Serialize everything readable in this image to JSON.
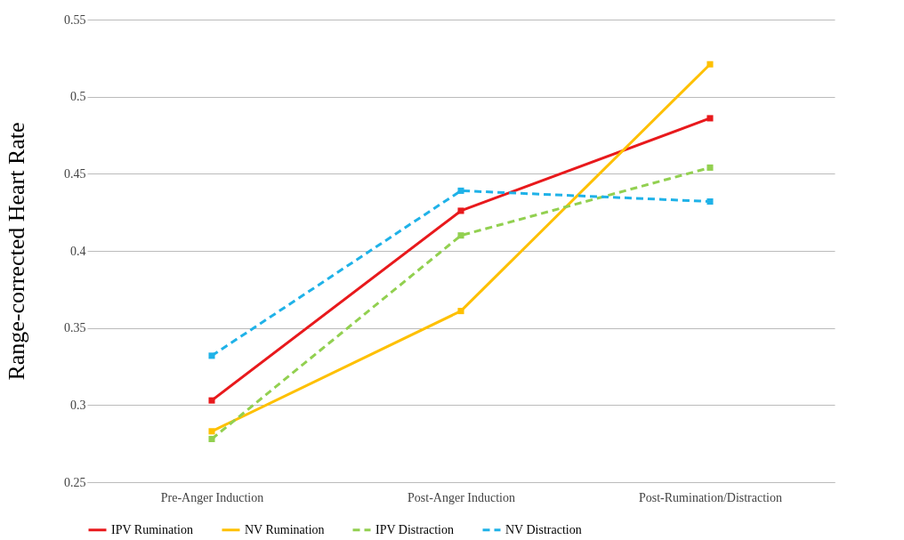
{
  "chart_data": {
    "type": "line",
    "ylabel": "Range-corrected Heart Rate",
    "categories": [
      "Pre-Anger Induction",
      "Post-Anger Induction",
      "Post-Rumination/Distraction"
    ],
    "series": [
      {
        "name": "IPV Rumination",
        "color": "#e8191c",
        "line_style": "solid",
        "values": [
          0.303,
          0.426,
          0.486
        ]
      },
      {
        "name": "NV Rumination",
        "color": "#fec000",
        "line_style": "solid",
        "values": [
          0.283,
          0.361,
          0.521
        ]
      },
      {
        "name": "IPV Distraction",
        "color": "#92d050",
        "line_style": "dashed",
        "values": [
          0.278,
          0.41,
          0.454
        ]
      },
      {
        "name": "NV Distraction",
        "color": "#1fb2e8",
        "line_style": "dashed",
        "values": [
          0.332,
          0.439,
          0.432
        ]
      }
    ],
    "ylim": [
      0.25,
      0.55
    ],
    "yticks": [
      0.25,
      0.3,
      0.35,
      0.4,
      0.45,
      0.5,
      0.55
    ],
    "grid": "y",
    "legend": "bottom",
    "marker": "square"
  }
}
